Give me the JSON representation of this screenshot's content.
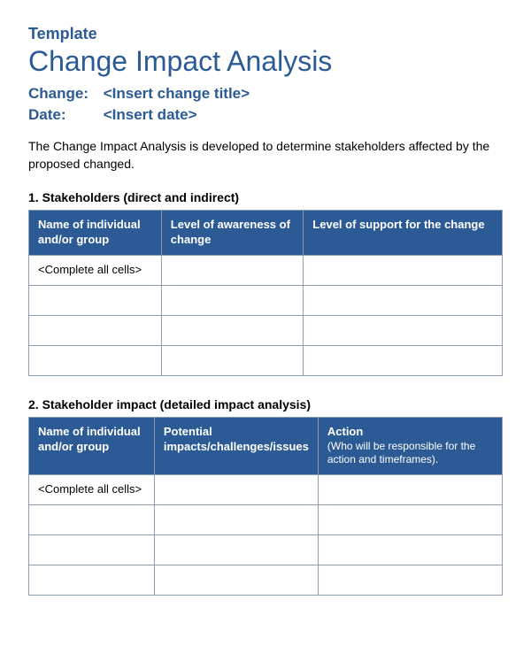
{
  "colors": {
    "brand_blue": "#2b5a94",
    "header_bg": "#2b5a94",
    "border": "#8a9db5",
    "text_black": "#000000",
    "text_white": "#ffffff",
    "background": "#ffffff"
  },
  "typography": {
    "template_label_size": 18,
    "main_title_size": 32,
    "meta_size": 17,
    "body_size": 14,
    "table_header_size": 13,
    "table_cell_size": 13
  },
  "header": {
    "template_label": "Template",
    "main_title": "Change Impact Analysis",
    "change_label": "Change:",
    "change_value": "<Insert change title>",
    "date_label": "Date:",
    "date_value": "<Insert date>"
  },
  "intro": "The Change Impact Analysis is developed to determine stakeholders affected by the proposed changed.",
  "section1": {
    "title": "1. Stakeholders (direct and indirect)",
    "columns": [
      {
        "text": "Name of individual and/or group",
        "width": "28%"
      },
      {
        "text": "Level of awareness of change",
        "width": "30%"
      },
      {
        "text": "Level of support for the change",
        "width": "42%"
      }
    ],
    "rows": [
      [
        "<Complete all cells>",
        "",
        ""
      ],
      [
        "",
        "",
        ""
      ],
      [
        "",
        "",
        ""
      ],
      [
        "",
        "",
        ""
      ]
    ]
  },
  "section2": {
    "title": "2. Stakeholder impact (detailed impact analysis)",
    "columns": [
      {
        "text": "Name of individual and/or group",
        "sub": "",
        "width": "28%"
      },
      {
        "text": "Potential impacts/challenges/issues",
        "sub": "",
        "width": "30%"
      },
      {
        "text": "Action",
        "sub": "(Who will be responsible for the action and timeframes).",
        "width": "42%"
      }
    ],
    "rows": [
      [
        "<Complete all cells>",
        "",
        ""
      ],
      [
        "",
        "",
        ""
      ],
      [
        "",
        "",
        ""
      ],
      [
        "",
        "",
        ""
      ]
    ]
  }
}
